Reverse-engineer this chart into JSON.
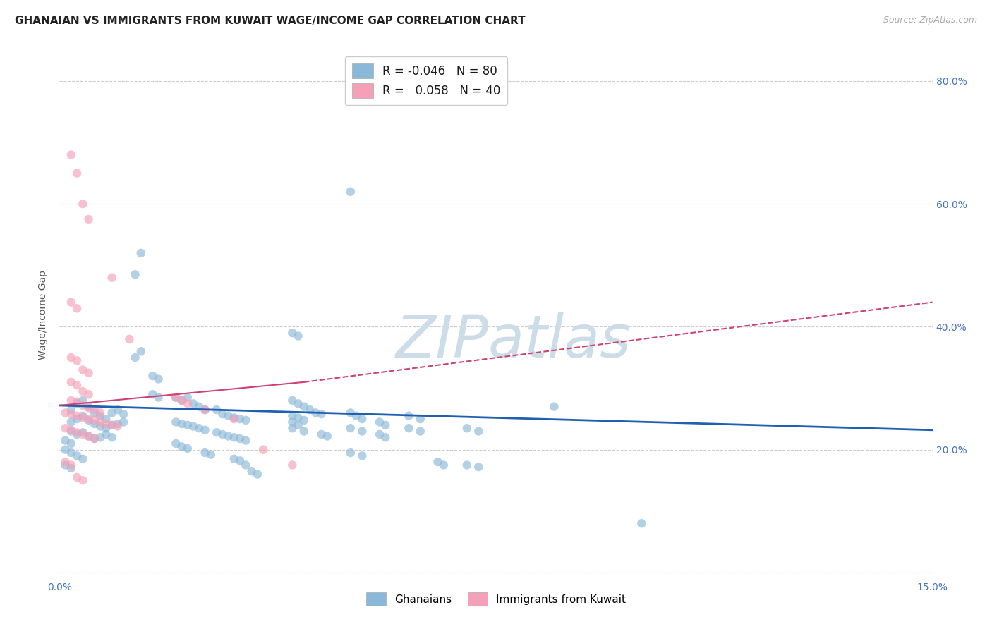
{
  "title": "GHANAIAN VS IMMIGRANTS FROM KUWAIT WAGE/INCOME GAP CORRELATION CHART",
  "source": "Source: ZipAtlas.com",
  "ylabel": "Wage/Income Gap",
  "watermark": "ZIPatlas",
  "blue_scatter": [
    [
      0.002,
      0.265
    ],
    [
      0.003,
      0.275
    ],
    [
      0.004,
      0.28
    ],
    [
      0.005,
      0.27
    ],
    [
      0.006,
      0.26
    ],
    [
      0.007,
      0.255
    ],
    [
      0.008,
      0.25
    ],
    [
      0.009,
      0.26
    ],
    [
      0.01,
      0.265
    ],
    [
      0.011,
      0.258
    ],
    [
      0.002,
      0.245
    ],
    [
      0.003,
      0.25
    ],
    [
      0.004,
      0.255
    ],
    [
      0.005,
      0.248
    ],
    [
      0.006,
      0.242
    ],
    [
      0.007,
      0.238
    ],
    [
      0.008,
      0.235
    ],
    [
      0.009,
      0.24
    ],
    [
      0.01,
      0.242
    ],
    [
      0.011,
      0.245
    ],
    [
      0.002,
      0.23
    ],
    [
      0.003,
      0.225
    ],
    [
      0.004,
      0.228
    ],
    [
      0.005,
      0.222
    ],
    [
      0.006,
      0.218
    ],
    [
      0.007,
      0.22
    ],
    [
      0.008,
      0.225
    ],
    [
      0.009,
      0.22
    ],
    [
      0.001,
      0.215
    ],
    [
      0.002,
      0.21
    ],
    [
      0.001,
      0.2
    ],
    [
      0.002,
      0.195
    ],
    [
      0.003,
      0.19
    ],
    [
      0.004,
      0.185
    ],
    [
      0.001,
      0.175
    ],
    [
      0.002,
      0.17
    ],
    [
      0.013,
      0.485
    ],
    [
      0.014,
      0.52
    ],
    [
      0.013,
      0.35
    ],
    [
      0.014,
      0.36
    ],
    [
      0.016,
      0.32
    ],
    [
      0.017,
      0.315
    ],
    [
      0.016,
      0.29
    ],
    [
      0.017,
      0.285
    ],
    [
      0.02,
      0.285
    ],
    [
      0.021,
      0.28
    ],
    [
      0.022,
      0.285
    ],
    [
      0.023,
      0.275
    ],
    [
      0.024,
      0.27
    ],
    [
      0.025,
      0.265
    ],
    [
      0.027,
      0.265
    ],
    [
      0.028,
      0.258
    ],
    [
      0.029,
      0.255
    ],
    [
      0.03,
      0.252
    ],
    [
      0.031,
      0.25
    ],
    [
      0.032,
      0.248
    ],
    [
      0.02,
      0.245
    ],
    [
      0.021,
      0.242
    ],
    [
      0.022,
      0.24
    ],
    [
      0.023,
      0.238
    ],
    [
      0.024,
      0.235
    ],
    [
      0.025,
      0.232
    ],
    [
      0.027,
      0.228
    ],
    [
      0.028,
      0.225
    ],
    [
      0.029,
      0.222
    ],
    [
      0.03,
      0.22
    ],
    [
      0.031,
      0.218
    ],
    [
      0.032,
      0.215
    ],
    [
      0.02,
      0.21
    ],
    [
      0.021,
      0.205
    ],
    [
      0.022,
      0.202
    ],
    [
      0.025,
      0.195
    ],
    [
      0.026,
      0.192
    ],
    [
      0.03,
      0.185
    ],
    [
      0.031,
      0.182
    ],
    [
      0.032,
      0.175
    ],
    [
      0.033,
      0.165
    ],
    [
      0.034,
      0.16
    ],
    [
      0.04,
      0.39
    ],
    [
      0.041,
      0.385
    ],
    [
      0.04,
      0.28
    ],
    [
      0.041,
      0.275
    ],
    [
      0.042,
      0.27
    ],
    [
      0.043,
      0.265
    ],
    [
      0.044,
      0.26
    ],
    [
      0.045,
      0.258
    ],
    [
      0.04,
      0.255
    ],
    [
      0.041,
      0.252
    ],
    [
      0.042,
      0.248
    ],
    [
      0.04,
      0.245
    ],
    [
      0.041,
      0.24
    ],
    [
      0.04,
      0.235
    ],
    [
      0.042,
      0.23
    ],
    [
      0.045,
      0.225
    ],
    [
      0.046,
      0.222
    ],
    [
      0.05,
      0.62
    ],
    [
      0.05,
      0.26
    ],
    [
      0.051,
      0.255
    ],
    [
      0.052,
      0.25
    ],
    [
      0.055,
      0.245
    ],
    [
      0.056,
      0.24
    ],
    [
      0.05,
      0.235
    ],
    [
      0.052,
      0.23
    ],
    [
      0.055,
      0.225
    ],
    [
      0.056,
      0.22
    ],
    [
      0.05,
      0.195
    ],
    [
      0.052,
      0.19
    ],
    [
      0.06,
      0.255
    ],
    [
      0.062,
      0.25
    ],
    [
      0.06,
      0.235
    ],
    [
      0.062,
      0.23
    ],
    [
      0.065,
      0.18
    ],
    [
      0.066,
      0.175
    ],
    [
      0.07,
      0.235
    ],
    [
      0.072,
      0.23
    ],
    [
      0.07,
      0.175
    ],
    [
      0.072,
      0.172
    ],
    [
      0.085,
      0.27
    ],
    [
      0.1,
      0.08
    ]
  ],
  "pink_scatter": [
    [
      0.002,
      0.68
    ],
    [
      0.003,
      0.65
    ],
    [
      0.004,
      0.6
    ],
    [
      0.005,
      0.575
    ],
    [
      0.002,
      0.44
    ],
    [
      0.003,
      0.43
    ],
    [
      0.009,
      0.48
    ],
    [
      0.012,
      0.38
    ],
    [
      0.002,
      0.35
    ],
    [
      0.003,
      0.345
    ],
    [
      0.004,
      0.33
    ],
    [
      0.005,
      0.325
    ],
    [
      0.002,
      0.31
    ],
    [
      0.003,
      0.305
    ],
    [
      0.004,
      0.295
    ],
    [
      0.005,
      0.29
    ],
    [
      0.002,
      0.28
    ],
    [
      0.003,
      0.278
    ],
    [
      0.004,
      0.272
    ],
    [
      0.005,
      0.268
    ],
    [
      0.006,
      0.265
    ],
    [
      0.007,
      0.26
    ],
    [
      0.001,
      0.26
    ],
    [
      0.002,
      0.258
    ],
    [
      0.003,
      0.255
    ],
    [
      0.004,
      0.252
    ],
    [
      0.005,
      0.25
    ],
    [
      0.006,
      0.248
    ],
    [
      0.007,
      0.245
    ],
    [
      0.008,
      0.242
    ],
    [
      0.009,
      0.24
    ],
    [
      0.01,
      0.238
    ],
    [
      0.001,
      0.235
    ],
    [
      0.002,
      0.232
    ],
    [
      0.003,
      0.228
    ],
    [
      0.004,
      0.225
    ],
    [
      0.005,
      0.222
    ],
    [
      0.006,
      0.218
    ],
    [
      0.001,
      0.18
    ],
    [
      0.002,
      0.175
    ],
    [
      0.003,
      0.155
    ],
    [
      0.004,
      0.15
    ],
    [
      0.02,
      0.285
    ],
    [
      0.021,
      0.28
    ],
    [
      0.022,
      0.275
    ],
    [
      0.025,
      0.265
    ],
    [
      0.03,
      0.25
    ],
    [
      0.035,
      0.2
    ],
    [
      0.04,
      0.175
    ]
  ],
  "blue_line": {
    "x0": 0.0,
    "y0": 0.272,
    "x1": 0.15,
    "y1": 0.232
  },
  "pink_line_solid": {
    "x0": 0.0,
    "y0": 0.272,
    "x1": 0.042,
    "y1": 0.31
  },
  "pink_line_dashed": {
    "x0": 0.042,
    "y0": 0.31,
    "x1": 0.15,
    "y1": 0.44
  },
  "xlim": [
    0.0,
    0.15
  ],
  "ylim": [
    -0.01,
    0.85
  ],
  "yticks": [
    0.0,
    0.2,
    0.4,
    0.6,
    0.8
  ],
  "xticks": [
    0.0,
    0.025,
    0.05,
    0.075,
    0.1,
    0.125,
    0.15
  ],
  "scatter_size": 80,
  "blue_color": "#8ab8d8",
  "pink_color": "#f4a0b8",
  "blue_line_color": "#2060b0",
  "pink_line_color": "#d04070",
  "blue_alpha": 0.65,
  "pink_alpha": 0.65,
  "grid_color": "#cccccc",
  "background_color": "#ffffff",
  "title_fontsize": 11,
  "source_fontsize": 9,
  "watermark_color": "#ccdde8",
  "watermark_fontsize": 60,
  "tick_label_color": "#4472c4",
  "tick_fontsize": 10
}
